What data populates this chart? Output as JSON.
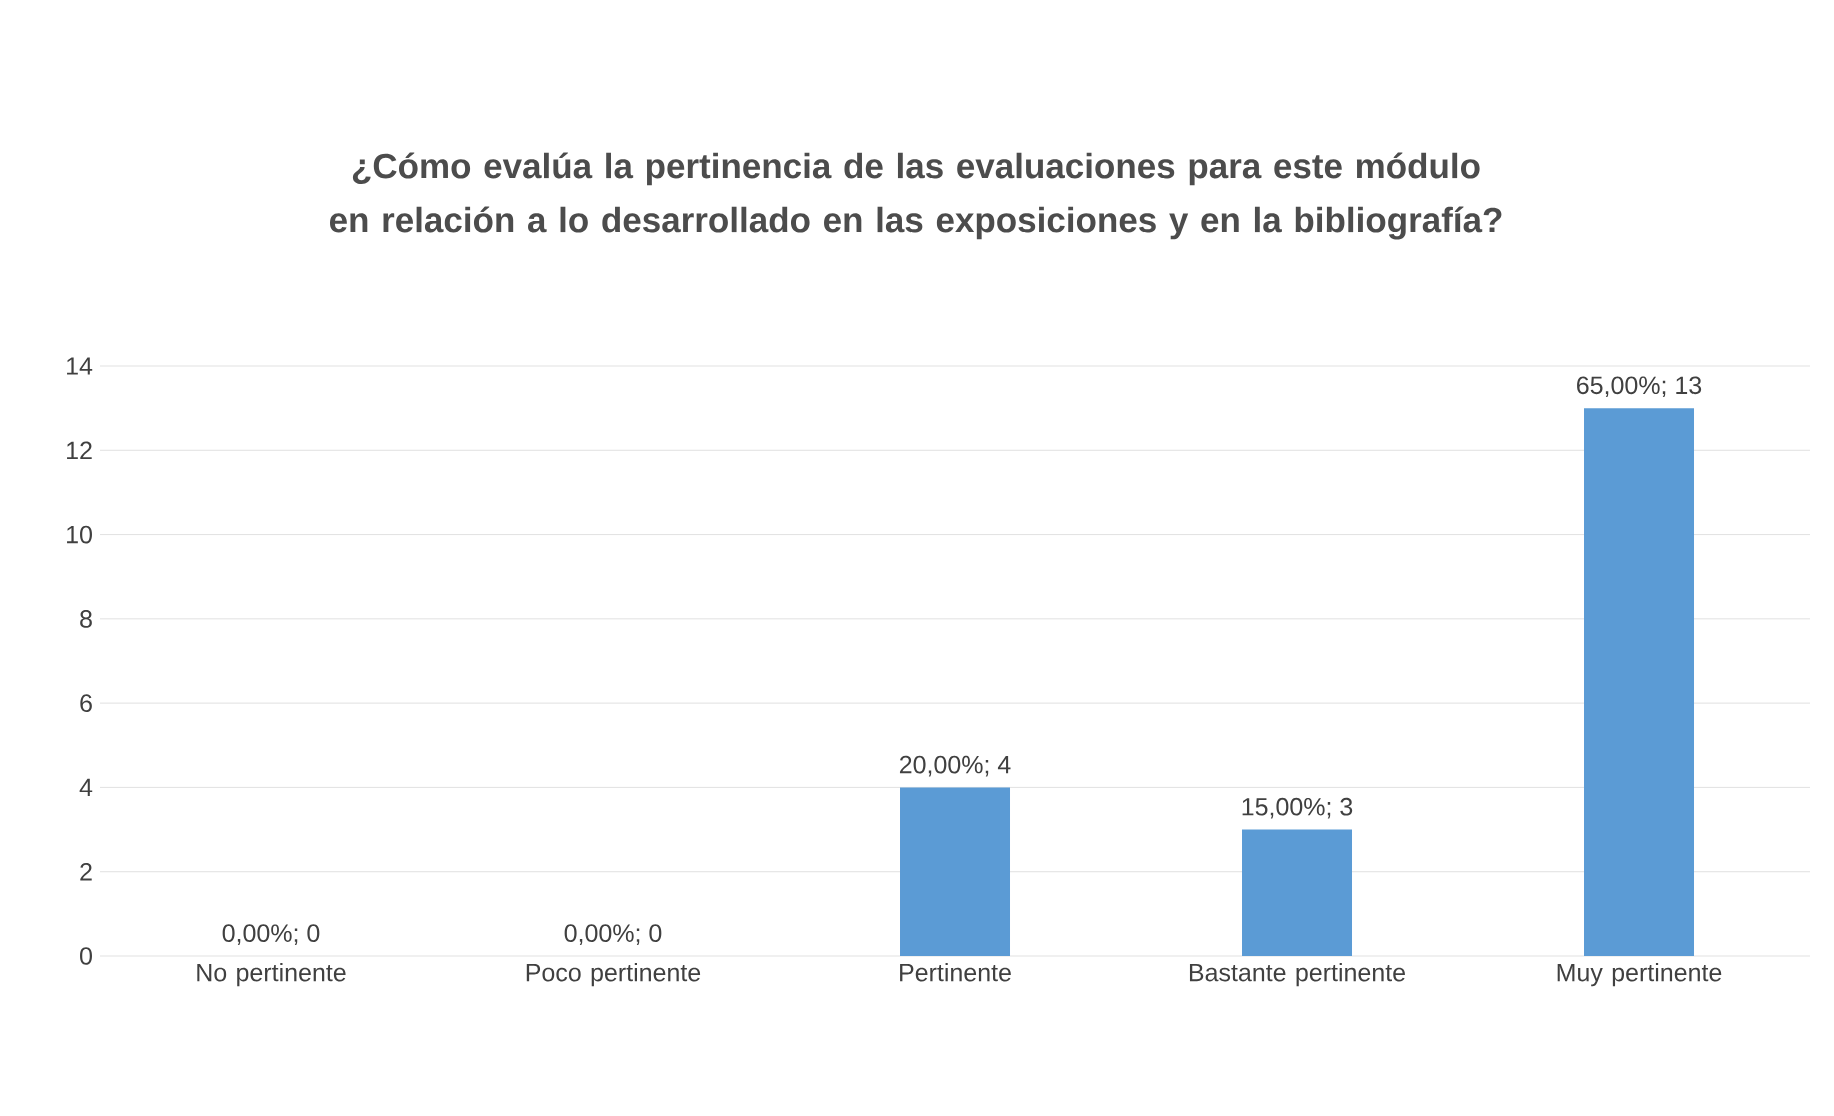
{
  "chart_data": {
    "type": "bar",
    "title": "¿Cómo evalúa la pertinencia de las evaluaciones para este módulo en relación a lo desarrollado en las exposiciones y en la bibliografía?",
    "categories": [
      "No pertinente",
      "Poco pertinente",
      "Pertinente",
      "Bastante pertinente",
      "Muy pertinente"
    ],
    "values": [
      0,
      0,
      4,
      3,
      13
    ],
    "value_labels": [
      "0,00%; 0",
      "0,00%; 0",
      "20,00%; 4",
      "15,00%; 3",
      "65,00%; 13"
    ],
    "color": "#5b9bd5",
    "ylim": [
      0,
      14
    ],
    "yticks": [
      0,
      2,
      4,
      6,
      8,
      10,
      12,
      14
    ],
    "grid": "y"
  }
}
